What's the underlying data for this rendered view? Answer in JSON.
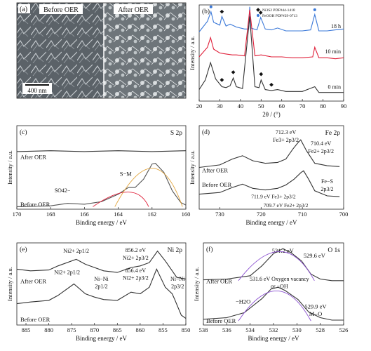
{
  "sem": {
    "letter": "(a)",
    "before_label": "Before OER",
    "after_label": "After OER",
    "scale_bar_label": "400 nm"
  },
  "chart_data": [
    {
      "id": "b",
      "type": "line",
      "letter": "(b)",
      "xlabel": "2θ / (°)",
      "ylabel": "Intensity / a.u.",
      "xlim": [
        20,
        90
      ],
      "xticks": [
        20,
        30,
        40,
        50,
        60,
        70,
        80,
        90
      ],
      "ylim": [
        0,
        10
      ],
      "legend": [
        "Ni3S2 PDF#44-1418",
        "FeOOH PDF#29-0713"
      ],
      "series_labels": [
        "18 h",
        "10 min",
        "0 min"
      ],
      "series": [
        {
          "name": "18 h",
          "color": "#3a78d8",
          "x": [
            20,
            24,
            25.7,
            27,
            30,
            31,
            33,
            35,
            38,
            42,
            44,
            44.5,
            45,
            48,
            49.8,
            52,
            55,
            58,
            62,
            66,
            70,
            74,
            76,
            78,
            82,
            86,
            90
          ],
          "y": [
            7.2,
            8.3,
            9.3,
            8.2,
            7.9,
            8.8,
            7.8,
            8.0,
            7.7,
            7.5,
            7.5,
            9.8,
            7.6,
            7.4,
            8.7,
            7.5,
            7.4,
            7.6,
            7.3,
            7.3,
            7.3,
            7.4,
            9.0,
            7.3,
            7.3,
            7.4,
            7.5
          ]
        },
        {
          "name": "10 min",
          "color": "#e0203a",
          "x": [
            20,
            24,
            25.5,
            27,
            30,
            33,
            36,
            38,
            42,
            44.5,
            47,
            50,
            55,
            60,
            65,
            70,
            75,
            76,
            78,
            82,
            86,
            90
          ],
          "y": [
            4.6,
            5.6,
            6.6,
            5.4,
            5.0,
            4.9,
            4.8,
            4.8,
            4.7,
            9.5,
            4.7,
            4.8,
            4.6,
            4.6,
            4.5,
            4.5,
            4.6,
            5.6,
            4.5,
            4.5,
            4.4,
            4.5
          ]
        },
        {
          "name": "0 min",
          "color": "#333333",
          "x": [
            20,
            23,
            25.5,
            28,
            31,
            33,
            35,
            36.5,
            38,
            41,
            44.5,
            47,
            49,
            50,
            52,
            55,
            58,
            62,
            66,
            70,
            76,
            78,
            82,
            86,
            90
          ],
          "y": [
            1.2,
            2.2,
            4.0,
            2.3,
            1.5,
            1.4,
            1.6,
            2.4,
            1.5,
            1.3,
            8.8,
            1.5,
            1.4,
            2.2,
            1.2,
            1.1,
            1.2,
            1.0,
            1.0,
            1.0,
            1.5,
            0.9,
            0.9,
            0.9,
            0.9
          ]
        }
      ]
    },
    {
      "id": "c",
      "type": "line",
      "letter": "(c)",
      "panel_title": "S 2p",
      "xlabel": "Binding energy / eV",
      "ylabel": "Intensity / a.u.",
      "xlim": [
        170,
        160
      ],
      "xticks": [
        170,
        168,
        166,
        164,
        162,
        160
      ],
      "ylim": [
        0,
        10
      ],
      "curve_labels": [
        "After OER",
        "Before OER"
      ],
      "peak_labels": [
        "S−M",
        "SO42−"
      ],
      "series": [
        {
          "name": "After OER",
          "color": "#333333",
          "x": [
            170,
            168,
            166,
            164,
            162,
            160
          ],
          "y": [
            6.9,
            7.0,
            6.9,
            7.0,
            6.9,
            7.0
          ]
        },
        {
          "name": "Before OER",
          "color": "#555555",
          "x": [
            170,
            168,
            167,
            166,
            165,
            164,
            163.4,
            163,
            162.5,
            162,
            161.8,
            161.3,
            160.8,
            160.3,
            160
          ],
          "y": [
            0.3,
            0.4,
            0.7,
            0.6,
            0.9,
            1.8,
            2.6,
            2.6,
            3.6,
            5.4,
            5.5,
            4.4,
            2.2,
            0.8,
            0.5
          ]
        }
      ]
    },
    {
      "id": "d",
      "type": "line",
      "letter": "(d)",
      "panel_title": "Fe 2p",
      "xlabel": "Binding energy / eV",
      "ylabel": "Intensity / a.u.",
      "xlim": [
        735,
        700
      ],
      "xticks": [
        730,
        720,
        710,
        700
      ],
      "ylim": [
        0,
        10
      ],
      "curve_labels": [
        "After OER",
        "Before OER"
      ],
      "peak_labels": [
        "712.3 eV",
        "Fe3+ 2p3/2",
        "710.4 eV",
        "Fe2+ 2p3/2",
        "711.9 eV Fe3+ 2p3/2",
        "Fe−S",
        "2p3/2",
        "709.7 eV Fe2+ 2p3/2"
      ],
      "series": [
        {
          "name": "After OER",
          "color": "#333333",
          "x": [
            735,
            730,
            727,
            724.5,
            722,
            719,
            716,
            714,
            712.3,
            711,
            710.4,
            709,
            707,
            704,
            701
          ],
          "y": [
            5.0,
            5.3,
            6.0,
            6.4,
            5.8,
            5.5,
            5.6,
            6.0,
            7.2,
            8.0,
            8.3,
            7.0,
            5.5,
            5.2,
            5.1
          ]
        },
        {
          "name": "Before OER",
          "color": "#333333",
          "x": [
            735,
            730,
            727,
            724.5,
            722,
            719,
            716,
            714,
            712,
            710.3,
            709.7,
            708.5,
            707,
            704,
            701
          ],
          "y": [
            1.8,
            2.0,
            2.6,
            3.0,
            2.5,
            2.3,
            2.5,
            2.9,
            3.6,
            4.4,
            4.6,
            3.6,
            2.2,
            1.6,
            1.5
          ]
        }
      ]
    },
    {
      "id": "e",
      "type": "line",
      "letter": "(e)",
      "panel_title": "Ni 2p",
      "xlabel": "Binding energy / eV",
      "ylabel": "Intensity / a.u.",
      "xlim": [
        887,
        850
      ],
      "xticks": [
        885,
        880,
        875,
        870,
        865,
        860,
        855,
        850
      ],
      "ylim": [
        0,
        10
      ],
      "curve_labels": [
        "After OER",
        "Before OER"
      ],
      "peak_labels": [
        "Ni2+ 2p1/2",
        "856.2 eV",
        "Ni2+ 2p3/2",
        "856.4 eV",
        "Ni2+ 2p3/2",
        "Ni2+ 2p1/2",
        "Ni−Ni",
        "2p1/2",
        "Ni−Ni",
        "2p3/2"
      ],
      "series": [
        {
          "name": "After OER",
          "color": "#333333",
          "x": [
            887,
            884,
            880,
            878,
            874,
            872,
            868,
            865,
            862,
            860,
            858,
            856.2,
            854.5,
            852,
            850
          ],
          "y": [
            6.8,
            6.6,
            6.7,
            7.2,
            8.0,
            7.4,
            6.6,
            6.4,
            7.0,
            7.2,
            7.6,
            9.0,
            7.8,
            5.8,
            5.6
          ]
        },
        {
          "name": "Before OER",
          "color": "#333333",
          "x": [
            887,
            884,
            880,
            878,
            874.5,
            872,
            870,
            868,
            865,
            862,
            860,
            858,
            856.4,
            854.5,
            853,
            852.5,
            851,
            850
          ],
          "y": [
            2.6,
            2.8,
            3.0,
            3.6,
            5.0,
            3.8,
            3.4,
            3.1,
            3.0,
            4.0,
            3.8,
            4.6,
            6.8,
            4.6,
            3.8,
            3.2,
            1.2,
            0.8
          ]
        }
      ]
    },
    {
      "id": "f",
      "type": "line",
      "letter": "(f)",
      "panel_title": "O 1s",
      "xlabel": "Binding energy / eV",
      "ylabel": "Intensity / a.u.",
      "xlim": [
        538,
        526
      ],
      "xticks": [
        538,
        536,
        534,
        532,
        530,
        528,
        526
      ],
      "ylim": [
        0,
        10
      ],
      "curve_labels": [
        "After OER",
        "Before OER"
      ],
      "peak_labels": [
        "531.2 eV",
        "529.6 eV",
        "531.6 eV Oxygen vacancy",
        "or −OH",
        "−H2O",
        "529.9 eV",
        "M−O"
      ],
      "series": [
        {
          "name": "After OER",
          "color": "#333333",
          "x": [
            538,
            536,
            534,
            533,
            532,
            531.2,
            530.5,
            529.6,
            528.8,
            528,
            527,
            526
          ],
          "y": [
            5.5,
            5.6,
            6.0,
            7.2,
            8.7,
            9.3,
            8.8,
            7.8,
            6.2,
            5.6,
            5.4,
            5.4
          ]
        },
        {
          "name": "Before OER",
          "color": "#333333",
          "x": [
            538,
            536,
            534.5,
            533,
            532.2,
            531.6,
            531,
            530.3,
            529.9,
            529,
            528,
            527,
            526
          ],
          "y": [
            0.7,
            0.9,
            1.5,
            3.2,
            4.4,
            4.6,
            4.2,
            3.5,
            3.1,
            1.6,
            0.9,
            0.6,
            0.6
          ]
        }
      ]
    }
  ]
}
